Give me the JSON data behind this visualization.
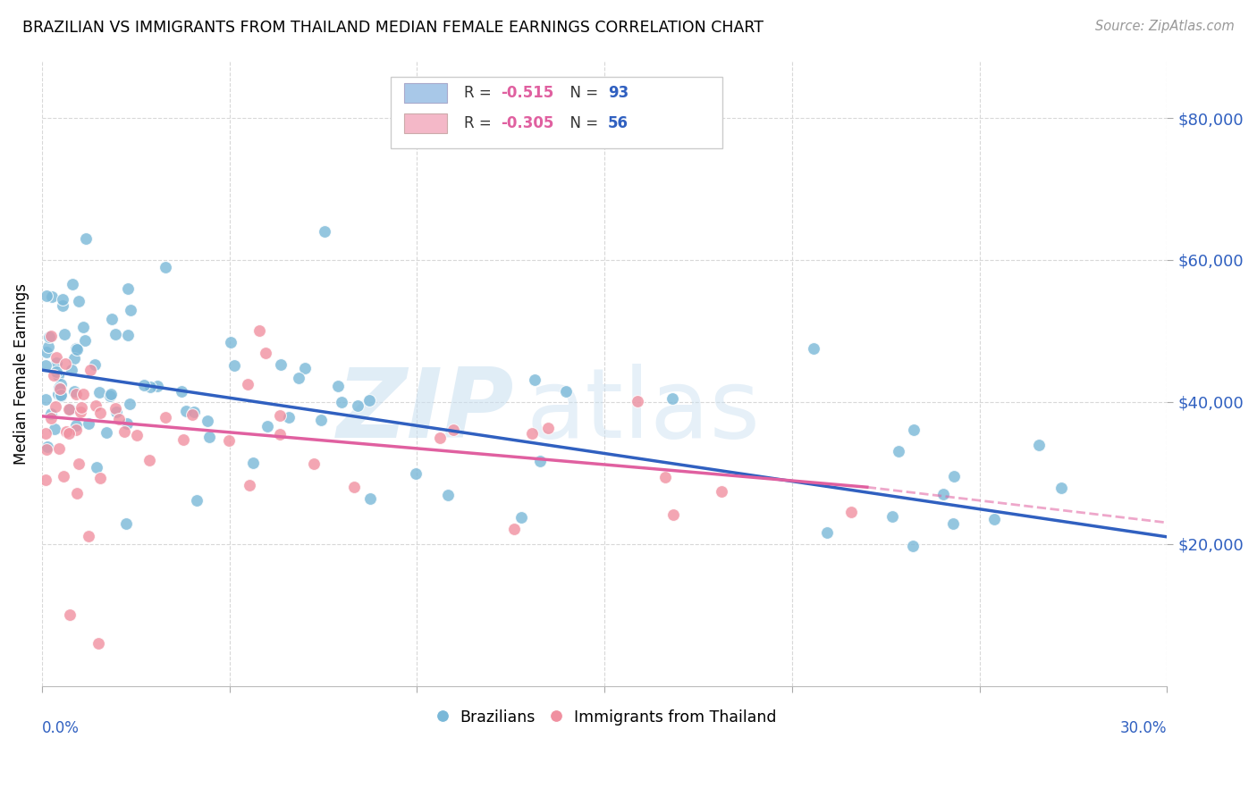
{
  "title": "BRAZILIAN VS IMMIGRANTS FROM THAILAND MEDIAN FEMALE EARNINGS CORRELATION CHART",
  "source": "Source: ZipAtlas.com",
  "ylabel": "Median Female Earnings",
  "y_ticks": [
    20000,
    40000,
    60000,
    80000
  ],
  "y_tick_labels": [
    "$20,000",
    "$40,000",
    "$60,000",
    "$80,000"
  ],
  "x_range": [
    0.0,
    0.3
  ],
  "y_range": [
    0,
    88000
  ],
  "legend_label1_r": "R = ",
  "legend_label1_rv": "-0.515",
  "legend_label1_n": "  N = ",
  "legend_label1_nv": "93",
  "legend_label2_r": "R = ",
  "legend_label2_rv": "-0.305",
  "legend_label2_n": "  N = ",
  "legend_label2_nv": "56",
  "legend_color1": "#a8c8e8",
  "legend_color2": "#f4b8c8",
  "scatter_color1": "#7ab8d8",
  "scatter_color2": "#f090a0",
  "line_color1": "#3060c0",
  "line_color2": "#e060a0",
  "watermark_color": "#c8dff0",
  "footer_label1": "Brazilians",
  "footer_label2": "Immigrants from Thailand",
  "blue_line_x0": 0.0,
  "blue_line_y0": 44500,
  "blue_line_x1": 0.3,
  "blue_line_y1": 21000,
  "pink_line_x0": 0.0,
  "pink_line_y0": 38000,
  "pink_line_x1": 0.22,
  "pink_line_y1": 28000,
  "pink_line_dash_x1": 0.3,
  "pink_line_dash_y1": 23000,
  "r_value_color": "#e040a0",
  "n_value_color": "#3060c0"
}
